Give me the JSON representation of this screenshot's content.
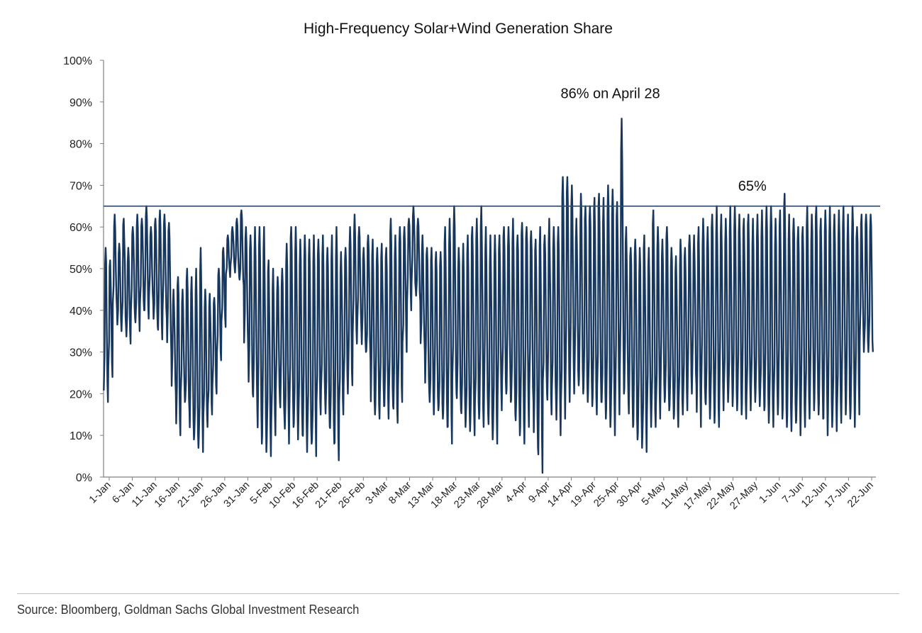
{
  "chart_data": {
    "type": "line",
    "title": "High-Frequency Solar+Wind Generation Share",
    "xlabel": "",
    "ylabel": "",
    "ylim": [
      0,
      100
    ],
    "y_ticks": [
      "0%",
      "10%",
      "20%",
      "30%",
      "40%",
      "50%",
      "60%",
      "70%",
      "80%",
      "90%",
      "100%"
    ],
    "x_tick_labels": [
      "1-Jan",
      "6-Jan",
      "11-Jan",
      "16-Jan",
      "21-Jan",
      "26-Jan",
      "31-Jan",
      "5-Feb",
      "10-Feb",
      "16-Feb",
      "21-Feb",
      "26-Feb",
      "3-Mar",
      "8-Mar",
      "13-Mar",
      "18-Mar",
      "23-Mar",
      "28-Mar",
      "4-Apr",
      "9-Apr",
      "14-Apr",
      "19-Apr",
      "25-Apr",
      "30-Apr",
      "5-May",
      "11-May",
      "17-May",
      "22-May",
      "27-May",
      "1-Jun",
      "7-Jun",
      "12-Jun",
      "17-Jun",
      "22-Jun"
    ],
    "reference_line": {
      "value": 65,
      "label": "65%"
    },
    "annotations": [
      {
        "text": "86% on April 28",
        "value": 86
      }
    ],
    "series": [
      {
        "name": "Solar+Wind share",
        "color": "#17375e",
        "daily_peaks": [
          55,
          52,
          63,
          56,
          62,
          55,
          60,
          63,
          62,
          65,
          60,
          62,
          64,
          63,
          61,
          45,
          48,
          45,
          50,
          48,
          50,
          55,
          45,
          44,
          43,
          50,
          55,
          58,
          60,
          62,
          64,
          60,
          58,
          60,
          60,
          60,
          52,
          50,
          48,
          50,
          56,
          60,
          60,
          57,
          58,
          57,
          58,
          57,
          58,
          55,
          58,
          60,
          54,
          55,
          60,
          63,
          60,
          55,
          58,
          57,
          55,
          56,
          55,
          62,
          58,
          60,
          60,
          62,
          65,
          62,
          58,
          55,
          55,
          54,
          54,
          60,
          62,
          65,
          55,
          56,
          58,
          60,
          62,
          65,
          60,
          58,
          58,
          58,
          60,
          60,
          62,
          58,
          61,
          60,
          59,
          57,
          60,
          58,
          62,
          60,
          60,
          72,
          72,
          70,
          62,
          68,
          65,
          65,
          67,
          68,
          67,
          70,
          69,
          66,
          86,
          60,
          55,
          57,
          55,
          58,
          55,
          64,
          60,
          57,
          60,
          55,
          53,
          57,
          55,
          58,
          58,
          60,
          62,
          60,
          63,
          65,
          63,
          62,
          65,
          65,
          63,
          62,
          63,
          62,
          63,
          64,
          65,
          65,
          62,
          64,
          68,
          63,
          62,
          60,
          60,
          65,
          63,
          65,
          62,
          64,
          65,
          63,
          64,
          65,
          63,
          65,
          60,
          63,
          63,
          63
        ],
        "daily_troughs": [
          18,
          24,
          40,
          35,
          36,
          32,
          38,
          35,
          40,
          38,
          42,
          36,
          33,
          38,
          30,
          20,
          10,
          18,
          16,
          9,
          7,
          6,
          12,
          15,
          20,
          28,
          36,
          48,
          50,
          48,
          46,
          30,
          20,
          16,
          8,
          6,
          5,
          10,
          18,
          14,
          8,
          12,
          9,
          10,
          6,
          8,
          5,
          15,
          18,
          12,
          8,
          4,
          15,
          20,
          22,
          32,
          35,
          30,
          28,
          15,
          14,
          17,
          14,
          17,
          13,
          18,
          30,
          40,
          45,
          42,
          30,
          20,
          15,
          16,
          14,
          12,
          8,
          20,
          16,
          12,
          11,
          10,
          14,
          12,
          15,
          9,
          8,
          16,
          20,
          18,
          15,
          10,
          8,
          12,
          18,
          7,
          1,
          20,
          15,
          18,
          10,
          14,
          18,
          20,
          22,
          20,
          18,
          17,
          15,
          18,
          14,
          12,
          10,
          15,
          20,
          18,
          12,
          9,
          7,
          6,
          12,
          12,
          14,
          18,
          16,
          14,
          12,
          15,
          16,
          20,
          22,
          12,
          18,
          14,
          13,
          12,
          16,
          18,
          17,
          16,
          15,
          14,
          16,
          18,
          17,
          16,
          13,
          12,
          15,
          14,
          12,
          11,
          13,
          10,
          12,
          14,
          16,
          15,
          14,
          10,
          12,
          11,
          13,
          15,
          14,
          12,
          15,
          30,
          30,
          30
        ]
      }
    ]
  },
  "source": "Source: Bloomberg, Goldman Sachs Global Investment Research"
}
